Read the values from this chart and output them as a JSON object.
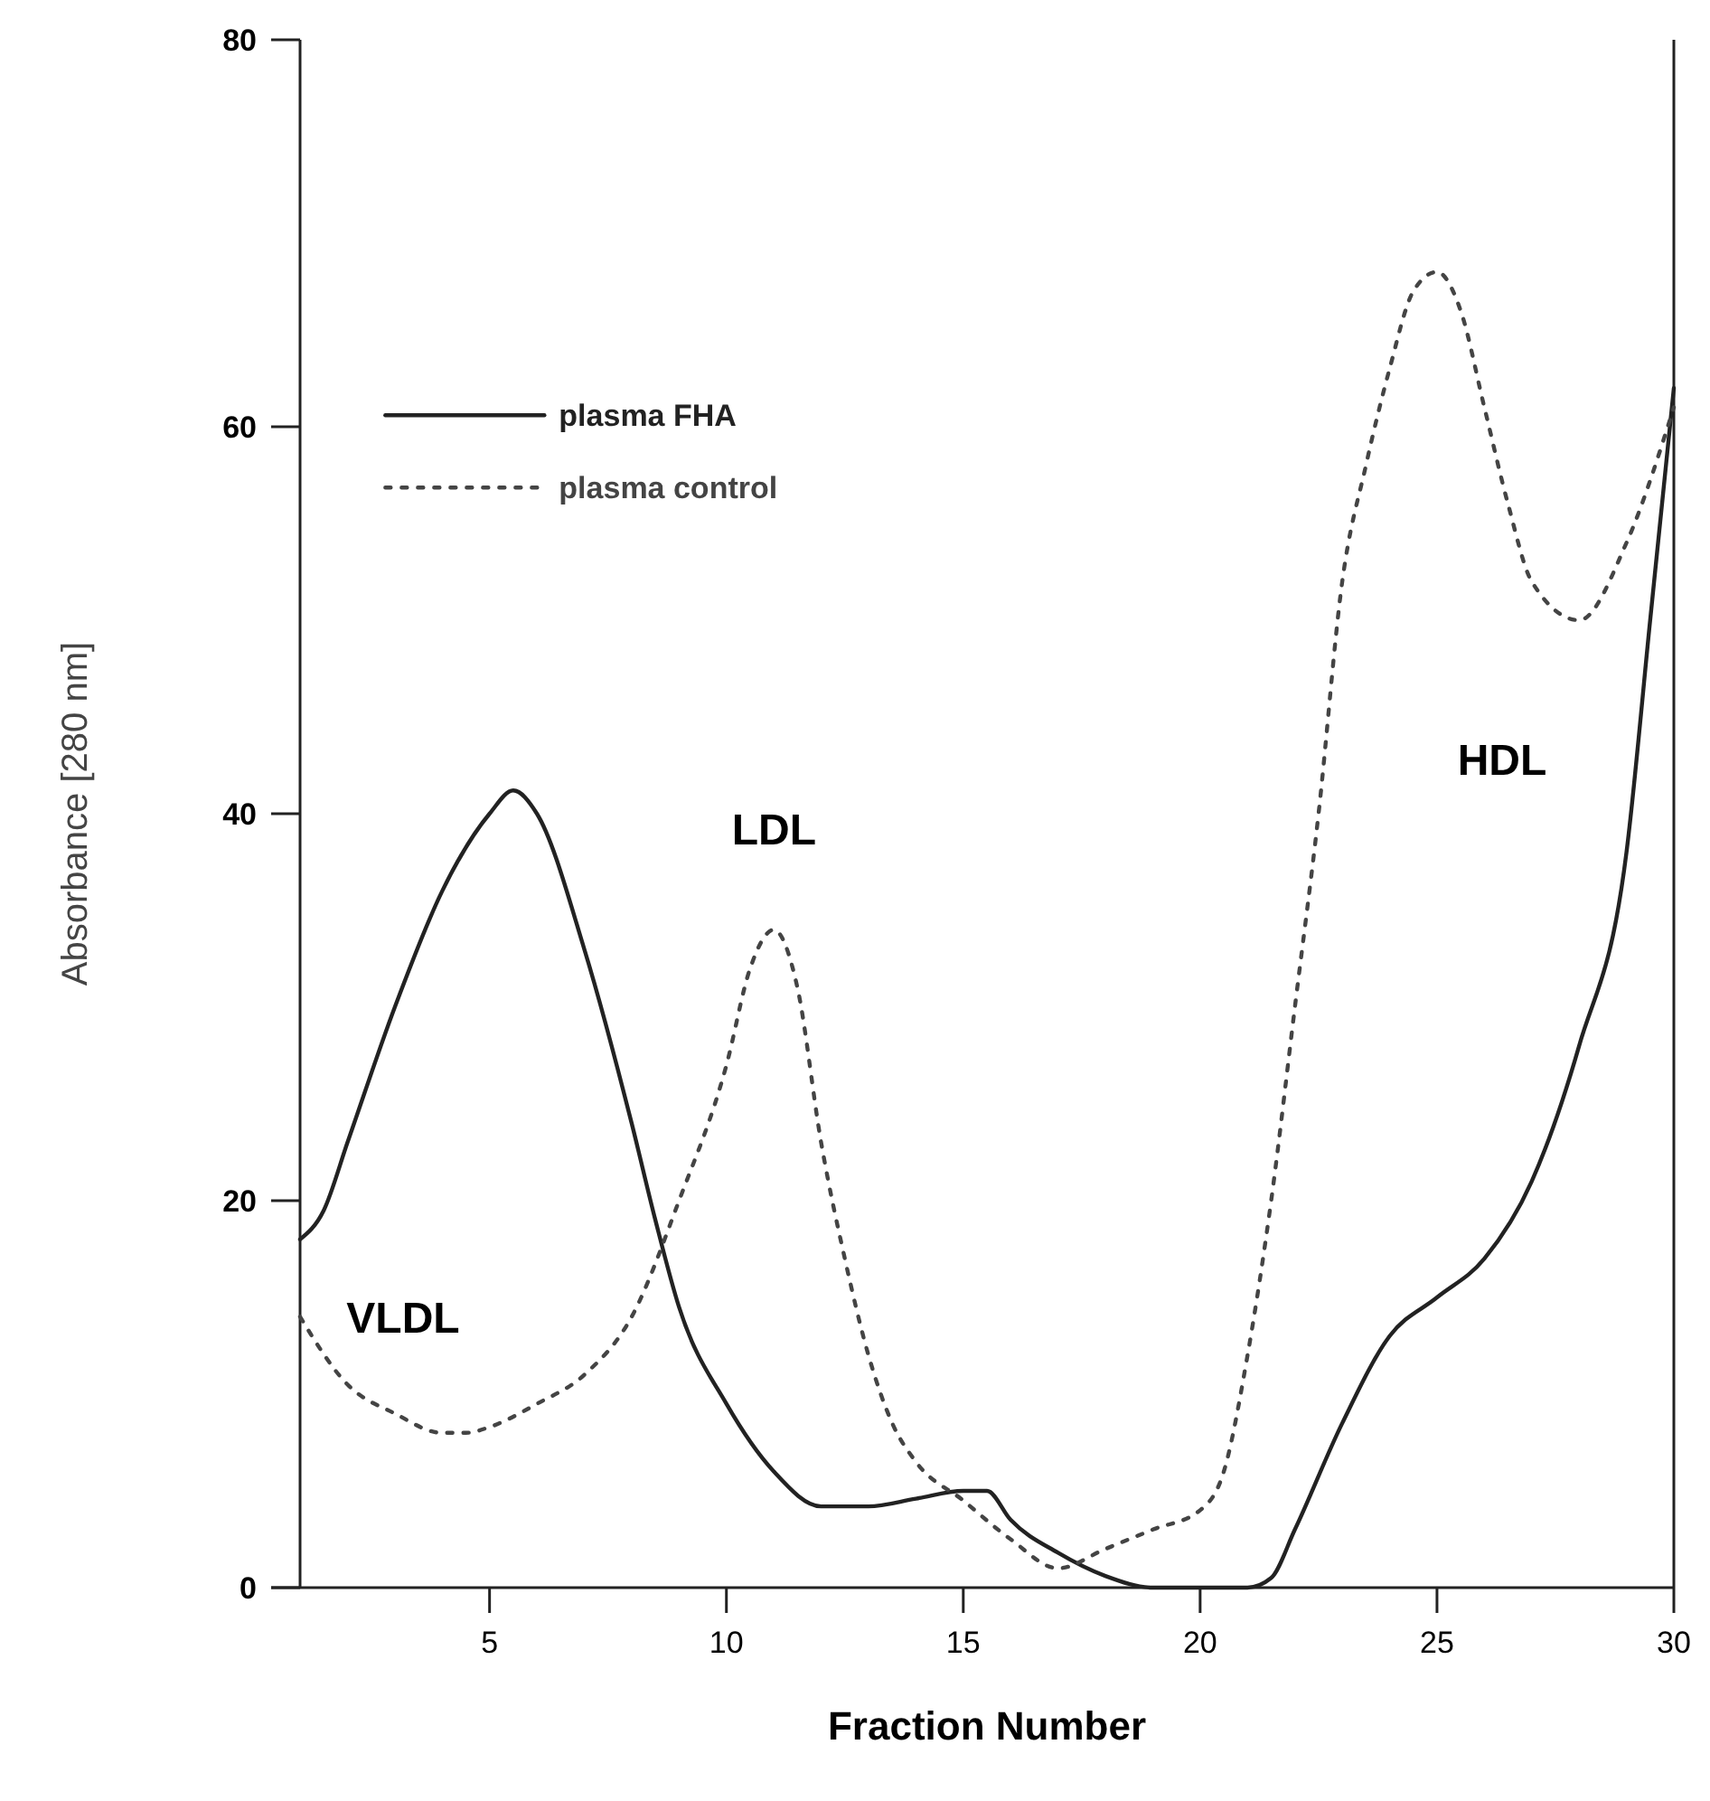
{
  "chart_data": {
    "type": "line",
    "xlabel": "Fraction Number",
    "ylabel": "Absorbance [280 nm]",
    "xlim": [
      1,
      30
    ],
    "xticks": [
      5,
      10,
      15,
      20,
      25,
      30
    ],
    "ylim": [
      0,
      80
    ],
    "yticks": [
      0,
      20,
      40,
      60,
      80
    ],
    "grid": false,
    "legend": "top left",
    "marker": "none",
    "series": [
      {
        "name": "plasma FHA",
        "color": "#222222",
        "line_style": "solid",
        "x": [
          1,
          1.5,
          2,
          3,
          4,
          5,
          5.5,
          6,
          7,
          8,
          8.5,
          9,
          10,
          11,
          12,
          13,
          14,
          15,
          15.5,
          16,
          17,
          18,
          19,
          20,
          21,
          21.5,
          22,
          23,
          24,
          25,
          26,
          27,
          28,
          29,
          29.5,
          30
        ],
        "values": [
          18,
          19.5,
          23,
          30,
          36,
          40,
          41.2,
          40,
          33,
          24,
          19,
          14.5,
          9.5,
          6,
          4.2,
          4.2,
          4.6,
          5,
          5,
          3.5,
          1.8,
          0.6,
          0,
          0,
          0,
          0.5,
          3,
          8.5,
          13,
          15,
          17,
          21,
          28,
          38,
          50,
          62
        ]
      },
      {
        "name": "plasma control",
        "color": "#444444",
        "line_style": "dotted",
        "x": [
          1,
          2,
          3,
          4,
          4.5,
          5,
          6,
          7,
          8,
          9,
          10,
          10.5,
          11,
          11.5,
          12,
          12.5,
          13,
          13.5,
          14,
          15,
          16,
          17,
          18,
          19,
          20,
          20.5,
          21,
          21.5,
          22,
          22.5,
          23,
          23.5,
          24,
          24.5,
          25,
          25.5,
          26,
          26.5,
          27,
          28,
          29,
          30
        ],
        "values": [
          14,
          10.5,
          9,
          8,
          8,
          8.3,
          9.5,
          11,
          14,
          20,
          27,
          32,
          34,
          31,
          23,
          17,
          12,
          8.5,
          6.5,
          4.5,
          2.5,
          1,
          2,
          3,
          4,
          6,
          12,
          20,
          30,
          40,
          52,
          58,
          63,
          67,
          68,
          66,
          61,
          56,
          52,
          50,
          54,
          61
        ]
      }
    ],
    "annotations": [
      "VLDL",
      "LDL",
      "HDL"
    ]
  }
}
